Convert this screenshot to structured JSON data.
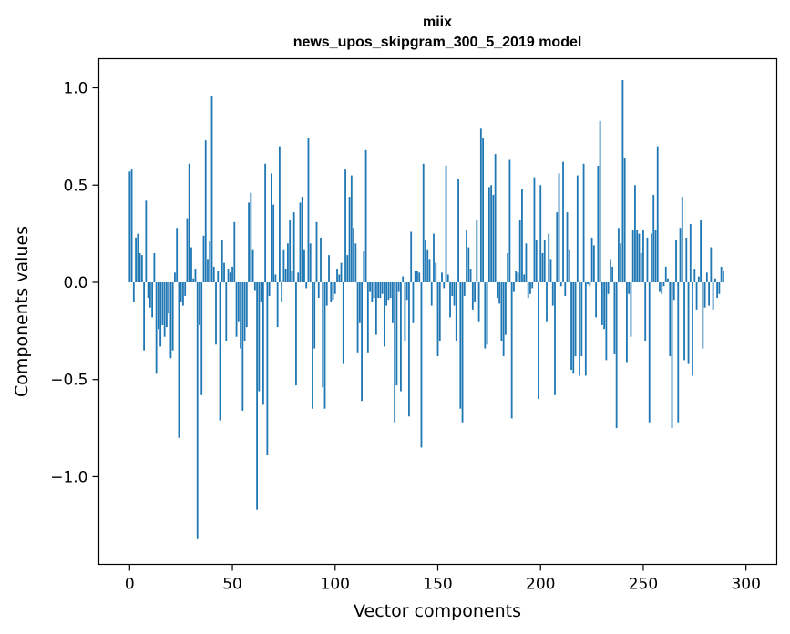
{
  "chart_data": {
    "type": "bar",
    "title_line1": "miix",
    "title_line2": "news_upos_skipgram_300_5_2019 model",
    "xlabel": "Vector components",
    "ylabel": "Components values",
    "xlim": [
      -15,
      315
    ],
    "ylim": [
      -1.45,
      1.15
    ],
    "xticks": [
      0,
      50,
      100,
      150,
      200,
      250,
      300
    ],
    "xtick_labels": [
      "0",
      "50",
      "100",
      "150",
      "200",
      "250",
      "300"
    ],
    "yticks": [
      -1.0,
      -0.5,
      0.0,
      0.5,
      1.0
    ],
    "ytick_labels": [
      "−1.0",
      "−0.5",
      "0.0",
      "0.5",
      "1.0"
    ],
    "bar_color": "#1f77b4",
    "grid": false,
    "values": [
      0.57,
      0.58,
      -0.1,
      0.23,
      0.25,
      0.15,
      0.14,
      -0.35,
      0.42,
      -0.08,
      -0.13,
      -0.18,
      0.15,
      -0.47,
      -0.24,
      -0.33,
      -0.22,
      -0.28,
      -0.23,
      -0.16,
      -0.39,
      -0.35,
      0.05,
      0.28,
      -0.8,
      -0.1,
      -0.12,
      -0.07,
      0.33,
      0.61,
      0.18,
      0.02,
      0.07,
      -1.32,
      -0.22,
      -0.58,
      0.24,
      0.73,
      0.12,
      0.21,
      0.96,
      0.08,
      -0.32,
      0.06,
      -0.71,
      0.22,
      0.1,
      -0.3,
      0.07,
      0.05,
      0.08,
      0.31,
      -0.28,
      -0.2,
      -0.34,
      -0.66,
      -0.3,
      -0.23,
      0.41,
      0.46,
      0.17,
      -0.04,
      -1.17,
      -0.56,
      -0.1,
      -0.63,
      0.61,
      -0.89,
      -0.07,
      0.56,
      0.4,
      0.04,
      -0.23,
      0.7,
      -0.1,
      0.17,
      0.07,
      0.2,
      0.32,
      0.06,
      0.36,
      -0.53,
      0.05,
      0.41,
      0.44,
      0.17,
      -0.03,
      0.74,
      0.2,
      -0.65,
      -0.34,
      0.31,
      -0.08,
      0.23,
      -0.54,
      -0.65,
      -0.12,
      0.14,
      -0.1,
      -0.09,
      -0.06,
      0.07,
      0.04,
      0.1,
      -0.42,
      0.58,
      0.14,
      0.44,
      0.55,
      0.28,
      0.2,
      -0.36,
      -0.21,
      -0.61,
      0.16,
      0.68,
      -0.36,
      -0.05,
      -0.1,
      -0.08,
      -0.27,
      -0.08,
      -0.08,
      -0.06,
      -0.33,
      -0.12,
      -0.09,
      -0.08,
      -0.21,
      -0.72,
      -0.53,
      -0.05,
      -0.56,
      0.03,
      -0.3,
      -0.09,
      -0.69,
      0.26,
      -0.21,
      0.06,
      0.06,
      0.05,
      -0.85,
      0.61,
      0.22,
      0.17,
      0.12,
      -0.12,
      0.25,
      0.1,
      -0.38,
      -0.3,
      0.05,
      -0.03,
      0.6,
      0.04,
      -0.18,
      -0.07,
      -0.12,
      -0.3,
      0.53,
      -0.65,
      -0.72,
      -0.07,
      0.27,
      0.18,
      0.07,
      -0.14,
      -0.1,
      0.32,
      -0.2,
      0.79,
      0.74,
      -0.34,
      -0.32,
      0.49,
      0.5,
      0.45,
      0.66,
      -0.08,
      -0.11,
      -0.3,
      -0.38,
      -0.27,
      0.15,
      0.63,
      -0.7,
      -0.05,
      0.06,
      0.05,
      0.32,
      0.48,
      0.04,
      0.2,
      -0.08,
      -0.06,
      -0.03,
      0.54,
      0.22,
      -0.6,
      0.5,
      0.15,
      0.22,
      -0.2,
      0.25,
      0.12,
      -0.12,
      -0.58,
      0.36,
      0.56,
      -0.02,
      0.62,
      -0.07,
      0.36,
      0.17,
      -0.45,
      -0.47,
      -0.38,
      0.55,
      -0.48,
      -0.38,
      0.61,
      -0.48,
      -0.01,
      -0.02,
      0.23,
      0.19,
      -0.18,
      0.6,
      0.83,
      -0.22,
      -0.24,
      -0.4,
      -0.06,
      0.12,
      0.08,
      -0.37,
      -0.75,
      0.28,
      0.2,
      1.04,
      0.64,
      -0.41,
      -0.06,
      -0.28,
      0.27,
      0.5,
      0.27,
      0.25,
      0.15,
      0.27,
      -0.3,
      0.23,
      -0.72,
      0.25,
      0.45,
      0.27,
      0.7,
      -0.05,
      -0.06,
      -0.02,
      0.08,
      0.02,
      -0.38,
      -0.75,
      -0.09,
      0.22,
      -0.72,
      0.28,
      0.44,
      -0.4,
      0.23,
      -0.42,
      0.3,
      -0.48,
      0.07,
      -0.14,
      0.03,
      0.32,
      -0.34,
      -0.13,
      0.05,
      -0.12,
      0.18,
      -0.14,
      0.02,
      -0.08,
      -0.06,
      0.08,
      0.06
    ]
  }
}
